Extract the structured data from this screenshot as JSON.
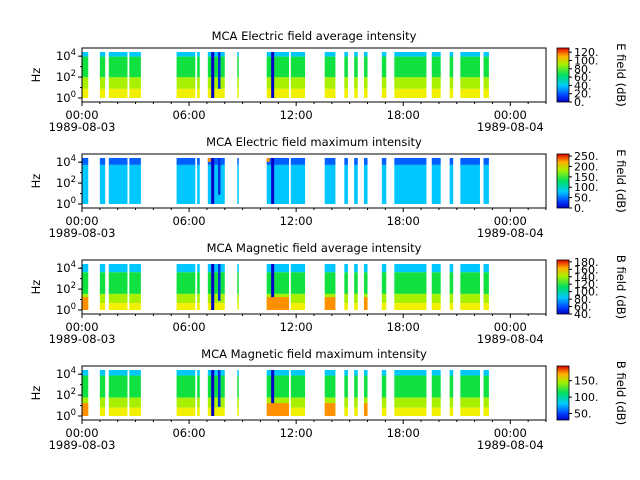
{
  "chart_data": [
    {
      "type": "heatmap",
      "title": "MCA  Electric field average intensity",
      "ylabel": "Hz",
      "y_ticks": [
        "10^0",
        "10^2",
        "10^4"
      ],
      "x_ticks": [
        "00:00",
        "06:00",
        "12:00",
        "18:00",
        "00:00"
      ],
      "x_dates": [
        "1989-08-03",
        "1989-08-04"
      ],
      "colorbar_label": "E field (dB)",
      "colorbar_range": [
        0,
        130
      ],
      "colorbar_ticks": [
        "0.",
        "20.",
        "40.",
        "60.",
        "80.",
        "100.",
        "120."
      ],
      "scale": "log"
    },
    {
      "type": "heatmap",
      "title": "MCA  Electric field maximum intensity",
      "ylabel": "Hz",
      "y_ticks": [
        "10^0",
        "10^2",
        "10^4"
      ],
      "x_ticks": [
        "00:00",
        "06:00",
        "12:00",
        "18:00",
        "00:00"
      ],
      "x_dates": [
        "1989-08-03",
        "1989-08-04"
      ],
      "colorbar_label": "E field (dB)",
      "colorbar_range": [
        0,
        260
      ],
      "colorbar_ticks": [
        "0.",
        "50.",
        "100.",
        "150.",
        "200.",
        "250."
      ],
      "scale": "log"
    },
    {
      "type": "heatmap",
      "title": "MCA  Magnetic field average intensity",
      "ylabel": "Hz",
      "y_ticks": [
        "10^0",
        "10^2",
        "10^4"
      ],
      "x_ticks": [
        "00:00",
        "06:00",
        "12:00",
        "18:00",
        "00:00"
      ],
      "x_dates": [
        "1989-08-03",
        "1989-08-04"
      ],
      "colorbar_label": "B field (dB)",
      "colorbar_range": [
        40,
        185
      ],
      "colorbar_ticks": [
        "40.",
        "60.",
        "80.",
        "100.",
        "120.",
        "140.",
        "160.",
        "180."
      ],
      "scale": "log"
    },
    {
      "type": "heatmap",
      "title": "MCA  Magnetic field maximum intensity",
      "ylabel": "Hz",
      "y_ticks": [
        "10^0",
        "10^2",
        "10^4"
      ],
      "x_ticks": [
        "00:00",
        "06:00",
        "12:00",
        "18:00",
        "00:00"
      ],
      "x_dates": [
        "1989-08-03",
        "1989-08-04"
      ],
      "colorbar_label": "B field (dB)",
      "colorbar_range": [
        30,
        195
      ],
      "colorbar_ticks": [
        "50.",
        "100.",
        "150."
      ],
      "scale": "log"
    }
  ],
  "data_segments_hours": [
    [
      0.0,
      0.35
    ],
    [
      1.0,
      1.3
    ],
    [
      1.5,
      2.55
    ],
    [
      2.65,
      3.3
    ],
    [
      5.3,
      6.35
    ],
    [
      6.45,
      6.6
    ],
    [
      7.05,
      8.0
    ],
    [
      8.7,
      8.78
    ],
    [
      10.35,
      11.6
    ],
    [
      11.7,
      12.5
    ],
    [
      13.6,
      14.2
    ],
    [
      14.7,
      14.9
    ],
    [
      15.25,
      15.45
    ],
    [
      15.8,
      16.0
    ],
    [
      16.8,
      17.05
    ],
    [
      17.5,
      19.3
    ],
    [
      19.6,
      20.1
    ],
    [
      20.6,
      20.8
    ],
    [
      21.2,
      22.3
    ],
    [
      22.5,
      22.8
    ]
  ],
  "colors": {
    "dark_blue": "#0000c8",
    "cyan": "#00c8ff",
    "green": "#10e040",
    "yellow": "#f0f000",
    "orange": "#ff9000",
    "red": "#e00000"
  }
}
